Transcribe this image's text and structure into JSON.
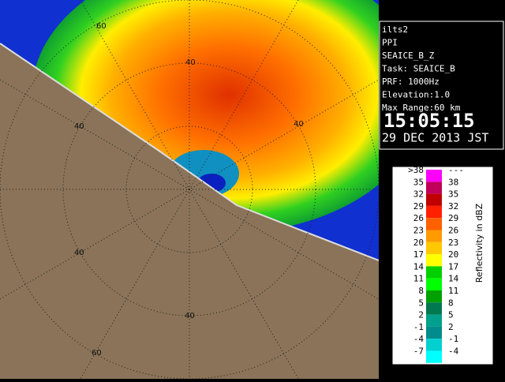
{
  "info": {
    "lines": [
      "ilts2",
      "PPI",
      "SEAICE_B_Z",
      "Task: SEAICE_B",
      "PRF: 1000Hz",
      "Elevation:1.0",
      "Max Range:60 km"
    ],
    "time": "15:05:15",
    "date": "29 DEC 2013 JST"
  },
  "legend": {
    "title": "Reflectivity in dBZ",
    "rows": [
      {
        "low": ">38",
        "high": "---",
        "color": "#ff00ff"
      },
      {
        "low": "35",
        "high": "38",
        "color": "#c0005a"
      },
      {
        "low": "32",
        "high": "35",
        "color": "#c00000"
      },
      {
        "low": "29",
        "high": "32",
        "color": "#ff2000"
      },
      {
        "low": "26",
        "high": "29",
        "color": "#ff6000"
      },
      {
        "low": "23",
        "high": "26",
        "color": "#ff9a00"
      },
      {
        "low": "20",
        "high": "23",
        "color": "#ffc800"
      },
      {
        "low": "17",
        "high": "20",
        "color": "#ffff00"
      },
      {
        "low": "14",
        "high": "17",
        "color": "#00d000"
      },
      {
        "low": "11",
        "high": "14",
        "color": "#00ff00"
      },
      {
        "low": "8",
        "high": "11",
        "color": "#00a000"
      },
      {
        "low": "5",
        "high": "8",
        "color": "#007850"
      },
      {
        "low": "2",
        "high": "5",
        "color": "#00a08c"
      },
      {
        "low": "-1",
        "high": "2",
        "color": "#008c8c"
      },
      {
        "low": "-4",
        "high": "-1",
        "color": "#00d0d0"
      },
      {
        "low": "-7",
        "high": "-4",
        "color": "#00ffff"
      }
    ]
  },
  "range_labels": [
    "60",
    "40",
    "40",
    "40",
    "40",
    "40",
    "60"
  ]
}
